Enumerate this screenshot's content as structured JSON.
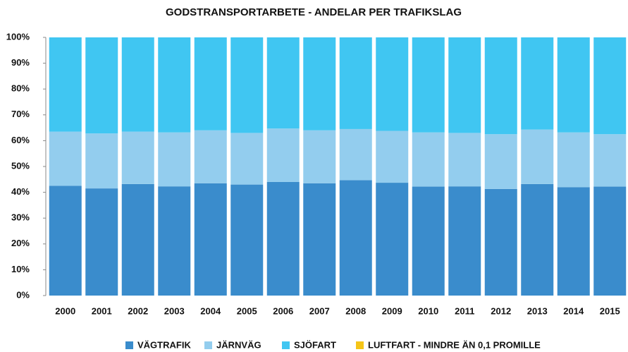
{
  "chart_data": {
    "type": "stacked_bar",
    "title": "GODSTRANSPORTARBETE - ANDELAR PER TRAFIKSLAG",
    "categories": [
      "2000",
      "2001",
      "2002",
      "2003",
      "2004",
      "2005",
      "2006",
      "2007",
      "2008",
      "2009",
      "2010",
      "2011",
      "2012",
      "2013",
      "2014",
      "2015"
    ],
    "series": [
      {
        "name": "VÄGTRAFIK",
        "color": "#3a8ccc",
        "values": [
          42.5,
          41.5,
          43.2,
          42.3,
          43.5,
          43,
          44,
          43.5,
          44.7,
          43.7,
          42.2,
          42.3,
          41.3,
          43.2,
          42,
          42.2
        ]
      },
      {
        "name": "JÄRNVÄG",
        "color": "#93cdee",
        "values": [
          21,
          21.3,
          20.3,
          20.9,
          20.5,
          20,
          20.7,
          20.5,
          19.8,
          20.1,
          21,
          20.7,
          21.2,
          21.1,
          21.2,
          20.3
        ]
      },
      {
        "name": "SJÖFART",
        "color": "#40c6f2",
        "values": [
          36.5,
          37.2,
          36.5,
          36.8,
          36,
          37,
          35.3,
          36,
          35.5,
          36.2,
          36.8,
          37,
          37.5,
          35.7,
          36.8,
          37.5
        ]
      },
      {
        "name": "LUFTFART - MINDRE ÄN 0,1 PROMILLE",
        "color": "#f5c518",
        "values": [
          0,
          0,
          0,
          0,
          0,
          0,
          0,
          0,
          0,
          0,
          0,
          0,
          0,
          0,
          0,
          0
        ]
      }
    ],
    "ylim": [
      0,
      100
    ],
    "yticks": [
      {
        "value": 0,
        "label": "0%"
      },
      {
        "value": 10,
        "label": "10%"
      },
      {
        "value": 20,
        "label": "20%"
      },
      {
        "value": 30,
        "label": "30%"
      },
      {
        "value": 40,
        "label": "40%"
      },
      {
        "value": 50,
        "label": "50%"
      },
      {
        "value": 60,
        "label": "60%"
      },
      {
        "value": 70,
        "label": "70%"
      },
      {
        "value": 80,
        "label": "80%"
      },
      {
        "value": 90,
        "label": "90%"
      },
      {
        "value": 100,
        "label": "100%"
      }
    ],
    "legend": "bottom"
  }
}
